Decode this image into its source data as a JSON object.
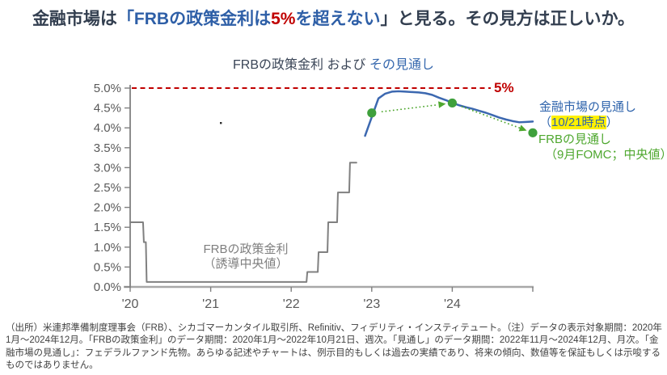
{
  "page": {
    "title_segments": [
      {
        "text": "金融市場は",
        "color": "#333F50"
      },
      {
        "text": "「FRBの政策金利は",
        "color": "#2E5FA7"
      },
      {
        "text": "5%",
        "color": "#C00000"
      },
      {
        "text": "を超えない",
        "color": "#2E5FA7"
      },
      {
        "text": "」と見る。その見方は正しいか。",
        "color": "#333F50"
      }
    ],
    "footer": "（出所）米連邦準備制度理事会（FRB）、シカゴマーカンタイル取引所、Refinitiv、フィデリティ・インスティテュート。（注）データの表示対象期間：2020年1月～2024年12月。「FRBの政策金利」のデータ期間：2020年1月～2022年10月21日、週次。「見通し」のデータ期間：2022年11月～2024年12月、月次。「金融市場の見通し」：フェデラルファンド先物。あらゆる記述やチャートは、例示目的もしくは過去の実績であり、将来の傾向、数値等を保証もしくは示唆するものではありません。"
  },
  "chart_data": {
    "type": "line",
    "title": "FRBの政策金利 および その見通し",
    "title_segments": [
      {
        "text": "FRBの政策金利 および ",
        "color": "#3A4557"
      },
      {
        "text": "その見通し",
        "color": "#3668AE"
      }
    ],
    "xlabel": "",
    "ylabel": "",
    "ylim": [
      0,
      5
    ],
    "xlim_years": [
      2020,
      2025
    ],
    "grid": false,
    "legend_position": "right",
    "y_ticks": [
      "5.0%",
      "4.5%",
      "4.0%",
      "3.5%",
      "3.0%",
      "2.5%",
      "2.0%",
      "1.5%",
      "1.0%",
      "0.5%",
      "0.0%"
    ],
    "y_tick_values": [
      5.0,
      4.5,
      4.0,
      3.5,
      3.0,
      2.5,
      2.0,
      1.5,
      1.0,
      0.5,
      0.0
    ],
    "x_ticks": [
      "'20",
      "'21",
      "'22",
      "'23",
      "'24"
    ],
    "x_tick_years": [
      2020,
      2021,
      2022,
      2023,
      2024,
      2025
    ],
    "reference_line": {
      "value": 5.0,
      "label": "5%",
      "color": "#C00000",
      "style": "dashed"
    },
    "series": [
      {
        "name": "FRBの政策金利（誘導中央値）",
        "type": "step-line",
        "color": "#808080",
        "points": [
          [
            2020.0,
            1.625
          ],
          [
            2020.16,
            1.625
          ],
          [
            2020.17,
            1.125
          ],
          [
            2020.195,
            1.125
          ],
          [
            2020.205,
            0.125
          ],
          [
            2022.19,
            0.125
          ],
          [
            2022.2,
            0.375
          ],
          [
            2022.33,
            0.375
          ],
          [
            2022.34,
            0.875
          ],
          [
            2022.45,
            0.875
          ],
          [
            2022.46,
            1.625
          ],
          [
            2022.57,
            1.625
          ],
          [
            2022.58,
            2.375
          ],
          [
            2022.72,
            2.375
          ],
          [
            2022.73,
            3.125
          ],
          [
            2022.81,
            3.125
          ]
        ]
      },
      {
        "name": "金融市場の見通し（10/21時点）",
        "type": "line",
        "color": "#3C68B0",
        "points": [
          [
            2022.917,
            3.8
          ],
          [
            2023.0,
            4.27
          ],
          [
            2023.083,
            4.74
          ],
          [
            2023.167,
            4.86
          ],
          [
            2023.25,
            4.91
          ],
          [
            2023.333,
            4.92
          ],
          [
            2023.417,
            4.91
          ],
          [
            2023.5,
            4.9
          ],
          [
            2023.583,
            4.89
          ],
          [
            2023.667,
            4.87
          ],
          [
            2023.75,
            4.83
          ],
          [
            2023.833,
            4.76
          ],
          [
            2023.917,
            4.7
          ],
          [
            2024.0,
            4.63
          ],
          [
            2024.083,
            4.57
          ],
          [
            2024.167,
            4.52
          ],
          [
            2024.25,
            4.48
          ],
          [
            2024.333,
            4.43
          ],
          [
            2024.417,
            4.38
          ],
          [
            2024.5,
            4.32
          ],
          [
            2024.583,
            4.26
          ],
          [
            2024.667,
            4.21
          ],
          [
            2024.75,
            4.17
          ],
          [
            2024.833,
            4.14
          ],
          [
            2024.917,
            4.15
          ],
          [
            2025.0,
            4.16
          ]
        ]
      },
      {
        "name": "FRBの見通し（9月FOMC；中央値）",
        "type": "points-with-arrows",
        "color": "#3FA03C",
        "points": [
          [
            2023.0,
            4.375
          ],
          [
            2024.0,
            4.625
          ],
          [
            2025.0,
            3.875
          ]
        ]
      }
    ],
    "annotations": {
      "ref_label": "5%",
      "policy_label_line1": "FRBの政策金利",
      "policy_label_line2": "（誘導中央値）",
      "market_label_line1": "金融市場の見通し",
      "market_label_line2_open": "（",
      "market_label_line2_hl": "10/21時点",
      "market_label_line2_close": "）",
      "frb_label_line1": "FRBの見通し",
      "frb_label_line2": "（9月FOMC；中央値）"
    }
  },
  "colors": {
    "title_navy": "#333F50",
    "title_blue": "#2E5FA7",
    "red": "#C00000",
    "market_line_blue": "#3C68B0",
    "frb_dot_green": "#3FA03C",
    "label_green": "#4EA72E",
    "policy_line_gray": "#808080",
    "axis_gray": "#A8A8A8",
    "tick_text_gray": "#595959",
    "highlight_yellow": "#FFF100"
  }
}
